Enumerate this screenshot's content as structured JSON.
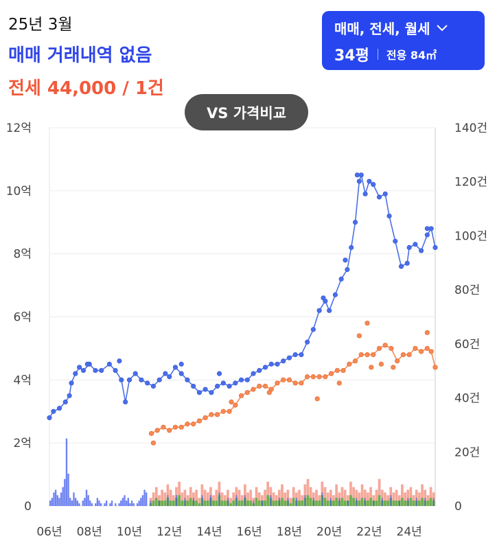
{
  "header": {
    "date": "25년 3월",
    "sale_status": "매매 거래내역 없음",
    "jeonse_summary": "전세 44,000 / 1건"
  },
  "selector": {
    "trade_types": "매매, 전세, 월세",
    "pyeong": "34평",
    "area": "전용 84㎡",
    "icon": "chevron-down-icon"
  },
  "vs_button": {
    "label": "VS 가격비교"
  },
  "colors": {
    "sale": "#4a6ee8",
    "jeonse": "#f58a55",
    "sale_bar": "#3350e8",
    "jeonse_bar": "#f28b78",
    "monthly_bar": "#4caf3a"
  },
  "chart_data": {
    "type": "line",
    "y_left": {
      "ticks": [
        "0",
        "2억",
        "4억",
        "6억",
        "8억",
        "10억",
        "12억"
      ],
      "ylim": [
        0,
        12
      ]
    },
    "y_right": {
      "ticks": [
        "0",
        "20건",
        "40건",
        "60건",
        "80건",
        "100건",
        "120건",
        "140건"
      ],
      "ylim": [
        0,
        140
      ]
    },
    "x": {
      "ticks": [
        "06년",
        "08년",
        "10년",
        "12년",
        "14년",
        "16년",
        "18년",
        "20년",
        "22년",
        "24년"
      ],
      "xlim": [
        2006,
        2025.3
      ]
    },
    "grid": true,
    "series": [
      {
        "type": "line",
        "axis": "left",
        "points": [
          [
            2006.0,
            2.8
          ],
          [
            2006.2,
            3.0
          ],
          [
            2006.5,
            3.1
          ],
          [
            2006.8,
            3.3
          ],
          [
            2007.0,
            3.5
          ],
          [
            2007.1,
            3.9
          ],
          [
            2007.3,
            4.2
          ],
          [
            2007.5,
            4.4
          ],
          [
            2007.7,
            4.3
          ],
          [
            2008.0,
            4.5
          ],
          [
            2008.3,
            4.3
          ],
          [
            2008.6,
            4.3
          ],
          [
            2009.0,
            4.5
          ],
          [
            2009.3,
            4.3
          ],
          [
            2009.6,
            4.0
          ],
          [
            2009.8,
            3.3
          ],
          [
            2010.0,
            4.0
          ],
          [
            2010.3,
            4.2
          ],
          [
            2010.6,
            4.0
          ],
          [
            2010.9,
            3.9
          ],
          [
            2011.2,
            3.8
          ],
          [
            2011.5,
            4.0
          ],
          [
            2011.8,
            4.2
          ],
          [
            2012.0,
            4.1
          ],
          [
            2012.3,
            4.4
          ],
          [
            2012.6,
            4.2
          ],
          [
            2012.9,
            4.0
          ],
          [
            2013.2,
            3.8
          ],
          [
            2013.5,
            3.6
          ],
          [
            2013.8,
            3.7
          ],
          [
            2014.1,
            3.6
          ],
          [
            2014.4,
            3.8
          ],
          [
            2014.7,
            3.9
          ],
          [
            2015.0,
            3.8
          ],
          [
            2015.3,
            3.9
          ],
          [
            2015.6,
            4.0
          ],
          [
            2015.9,
            4.0
          ],
          [
            2016.2,
            4.2
          ],
          [
            2016.5,
            4.3
          ],
          [
            2016.8,
            4.4
          ],
          [
            2017.1,
            4.5
          ],
          [
            2017.4,
            4.5
          ],
          [
            2017.7,
            4.6
          ],
          [
            2018.0,
            4.7
          ],
          [
            2018.3,
            4.8
          ],
          [
            2018.6,
            4.8
          ],
          [
            2018.9,
            5.2
          ],
          [
            2019.2,
            5.6
          ],
          [
            2019.5,
            6.2
          ],
          [
            2019.8,
            6.5
          ],
          [
            2020.0,
            6.2
          ],
          [
            2020.3,
            6.7
          ],
          [
            2020.6,
            7.2
          ],
          [
            2020.9,
            7.5
          ],
          [
            2021.1,
            8.2
          ],
          [
            2021.3,
            9.0
          ],
          [
            2021.5,
            10.3
          ],
          [
            2021.6,
            10.5
          ],
          [
            2021.8,
            9.9
          ],
          [
            2022.0,
            10.3
          ],
          [
            2022.2,
            10.2
          ],
          [
            2022.5,
            9.8
          ],
          [
            2022.8,
            9.9
          ],
          [
            2023.0,
            9.2
          ],
          [
            2023.3,
            8.4
          ],
          [
            2023.6,
            7.6
          ],
          [
            2023.9,
            7.7
          ],
          [
            2024.0,
            8.2
          ],
          [
            2024.3,
            8.3
          ],
          [
            2024.6,
            8.1
          ],
          [
            2024.9,
            8.6
          ],
          [
            2025.1,
            8.8
          ],
          [
            2025.3,
            8.2
          ]
        ],
        "spikes": [
          [
            2007.9,
            4.5
          ],
          [
            2009.5,
            4.6
          ],
          [
            2012.6,
            4.5
          ],
          [
            2014.5,
            4.2
          ],
          [
            2019.7,
            6.6
          ],
          [
            2020.8,
            7.8
          ],
          [
            2021.4,
            10.5
          ],
          [
            2024.9,
            8.8
          ]
        ]
      },
      {
        "type": "line",
        "axis": "left",
        "points": [
          [
            2011.1,
            2.3
          ],
          [
            2011.4,
            2.4
          ],
          [
            2011.7,
            2.5
          ],
          [
            2012.0,
            2.4
          ],
          [
            2012.3,
            2.5
          ],
          [
            2012.6,
            2.5
          ],
          [
            2012.9,
            2.6
          ],
          [
            2013.2,
            2.6
          ],
          [
            2013.5,
            2.7
          ],
          [
            2013.8,
            2.8
          ],
          [
            2014.1,
            2.9
          ],
          [
            2014.4,
            2.9
          ],
          [
            2014.7,
            3.0
          ],
          [
            2015.0,
            3.0
          ],
          [
            2015.3,
            3.2
          ],
          [
            2015.6,
            3.5
          ],
          [
            2015.9,
            3.6
          ],
          [
            2016.2,
            3.7
          ],
          [
            2016.5,
            3.8
          ],
          [
            2016.8,
            3.8
          ],
          [
            2017.1,
            3.7
          ],
          [
            2017.4,
            3.9
          ],
          [
            2017.7,
            4.0
          ],
          [
            2018.0,
            4.0
          ],
          [
            2018.3,
            3.9
          ],
          [
            2018.6,
            3.9
          ],
          [
            2018.9,
            4.1
          ],
          [
            2019.2,
            4.1
          ],
          [
            2019.5,
            4.1
          ],
          [
            2019.8,
            4.1
          ],
          [
            2020.1,
            4.2
          ],
          [
            2020.4,
            4.3
          ],
          [
            2020.7,
            4.3
          ],
          [
            2021.0,
            4.5
          ],
          [
            2021.3,
            4.6
          ],
          [
            2021.6,
            4.8
          ],
          [
            2021.9,
            4.8
          ],
          [
            2022.2,
            4.8
          ],
          [
            2022.5,
            5.0
          ],
          [
            2022.8,
            5.1
          ],
          [
            2023.1,
            5.0
          ],
          [
            2023.4,
            4.6
          ],
          [
            2023.7,
            4.8
          ],
          [
            2024.0,
            4.8
          ],
          [
            2024.3,
            5.0
          ],
          [
            2024.6,
            4.9
          ],
          [
            2024.9,
            5.0
          ],
          [
            2025.1,
            4.9
          ],
          [
            2025.3,
            4.4
          ]
        ],
        "spikes": [
          [
            2011.2,
            2.0
          ],
          [
            2015.1,
            3.3
          ],
          [
            2017.0,
            3.6
          ],
          [
            2019.4,
            3.4
          ],
          [
            2020.5,
            3.9
          ],
          [
            2021.5,
            5.4
          ],
          [
            2021.9,
            5.8
          ],
          [
            2022.1,
            4.4
          ],
          [
            2022.6,
            4.5
          ],
          [
            2023.2,
            4.4
          ],
          [
            2024.9,
            5.5
          ]
        ]
      }
    ],
    "bars": [
      {
        "axis": "right",
        "year_from": 2006.0,
        "year_to": 2010.9,
        "counts": [
          2,
          3,
          5,
          6,
          4,
          3,
          5,
          7,
          10,
          25,
          12,
          3,
          2,
          5,
          3,
          2,
          1,
          0,
          2,
          3,
          6,
          4,
          2,
          1,
          0,
          1,
          3,
          2,
          1,
          0,
          1,
          2,
          0,
          1,
          2,
          0,
          1,
          0,
          1,
          2,
          3,
          4,
          2,
          3,
          1,
          2,
          1,
          0,
          1,
          2,
          3,
          4,
          6,
          5
        ]
      },
      {
        "axis": "right",
        "year_from": 2011.0,
        "year_to": 2025.3,
        "counts": [
          3,
          5,
          7,
          4,
          6,
          5,
          8,
          6,
          4,
          7,
          9,
          5,
          6,
          4,
          7,
          5,
          6,
          3,
          8,
          6,
          5,
          7,
          4,
          6,
          9,
          5,
          4,
          6,
          3,
          5,
          7,
          6,
          4,
          8,
          5,
          6,
          3,
          7,
          5,
          4,
          6,
          9,
          7,
          5,
          4,
          6,
          8,
          5,
          6,
          3,
          7,
          5,
          6,
          4,
          8,
          10,
          7,
          5,
          6,
          4,
          9,
          7,
          5,
          6,
          4,
          8,
          5,
          7,
          6,
          4,
          9,
          7,
          6,
          5,
          8,
          6,
          5,
          7,
          4,
          6,
          10,
          6,
          5,
          4,
          7,
          5,
          6,
          4,
          8,
          5,
          6,
          7,
          4,
          6,
          5,
          8,
          6,
          4,
          7,
          5
        ]
      }
    ]
  }
}
